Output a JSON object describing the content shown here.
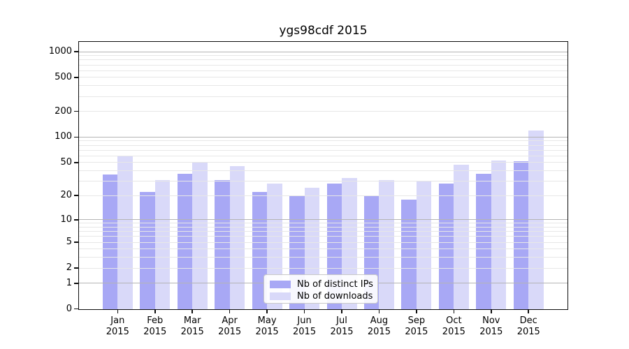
{
  "title": "ygs98cdf 2015",
  "chart_data": {
    "type": "bar",
    "title": "ygs98cdf 2015",
    "categories": [
      "Jan",
      "Feb",
      "Mar",
      "Apr",
      "May",
      "Jun",
      "Jul",
      "Aug",
      "Sep",
      "Oct",
      "Nov",
      "Dec"
    ],
    "year": "2015",
    "series": [
      {
        "name": "Nb of distinct IPs",
        "color": "#a8a8f5",
        "values": [
          36,
          22,
          37,
          31,
          22,
          20,
          28,
          20,
          18,
          28,
          37,
          52
        ]
      },
      {
        "name": "Nb of downloads",
        "color": "#d9d9f9",
        "values": [
          59,
          31,
          50,
          45,
          28,
          25,
          33,
          31,
          30,
          47,
          53,
          120
        ]
      }
    ],
    "y_ticks": [
      0,
      1,
      2,
      5,
      10,
      20,
      50,
      100,
      200,
      500,
      1000
    ],
    "scale": "log1p",
    "ylim": [
      0,
      1300
    ],
    "grid": true,
    "legend_position": "bottom-center"
  }
}
